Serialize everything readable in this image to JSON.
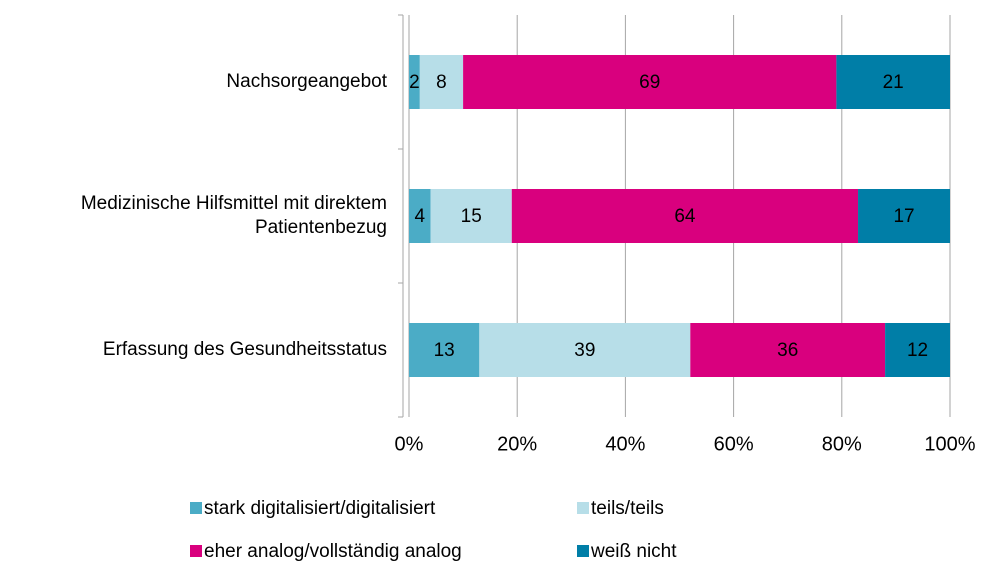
{
  "chart_data": {
    "type": "stacked-barh",
    "categories": [
      "Nachsorgeangebot",
      "Medizinische Hilfsmittel mit direktem Patientenbezug",
      "Erfassung des Gesundheitsstatus"
    ],
    "series": [
      {
        "name": "stark digitalisiert/digitalisiert",
        "color": "#4bacc6",
        "values": [
          2,
          4,
          13
        ]
      },
      {
        "name": "teils/teils",
        "color": "#b7dee8",
        "values": [
          8,
          15,
          39
        ]
      },
      {
        "name": "eher analog/vollständig analog",
        "color": "#d9007e",
        "values": [
          69,
          64,
          36
        ]
      },
      {
        "name": "weiß nicht",
        "color": "#007ea7",
        "values": [
          21,
          17,
          12
        ]
      }
    ],
    "xlim": [
      0,
      100
    ],
    "xticks": [
      {
        "value": 0,
        "label": "0%"
      },
      {
        "value": 20,
        "label": "20%"
      },
      {
        "value": 40,
        "label": "40%"
      },
      {
        "value": 60,
        "label": "60%"
      },
      {
        "value": 80,
        "label": "80%"
      },
      {
        "value": 100,
        "label": "100%"
      }
    ],
    "grid": true,
    "legend": "bottom"
  }
}
